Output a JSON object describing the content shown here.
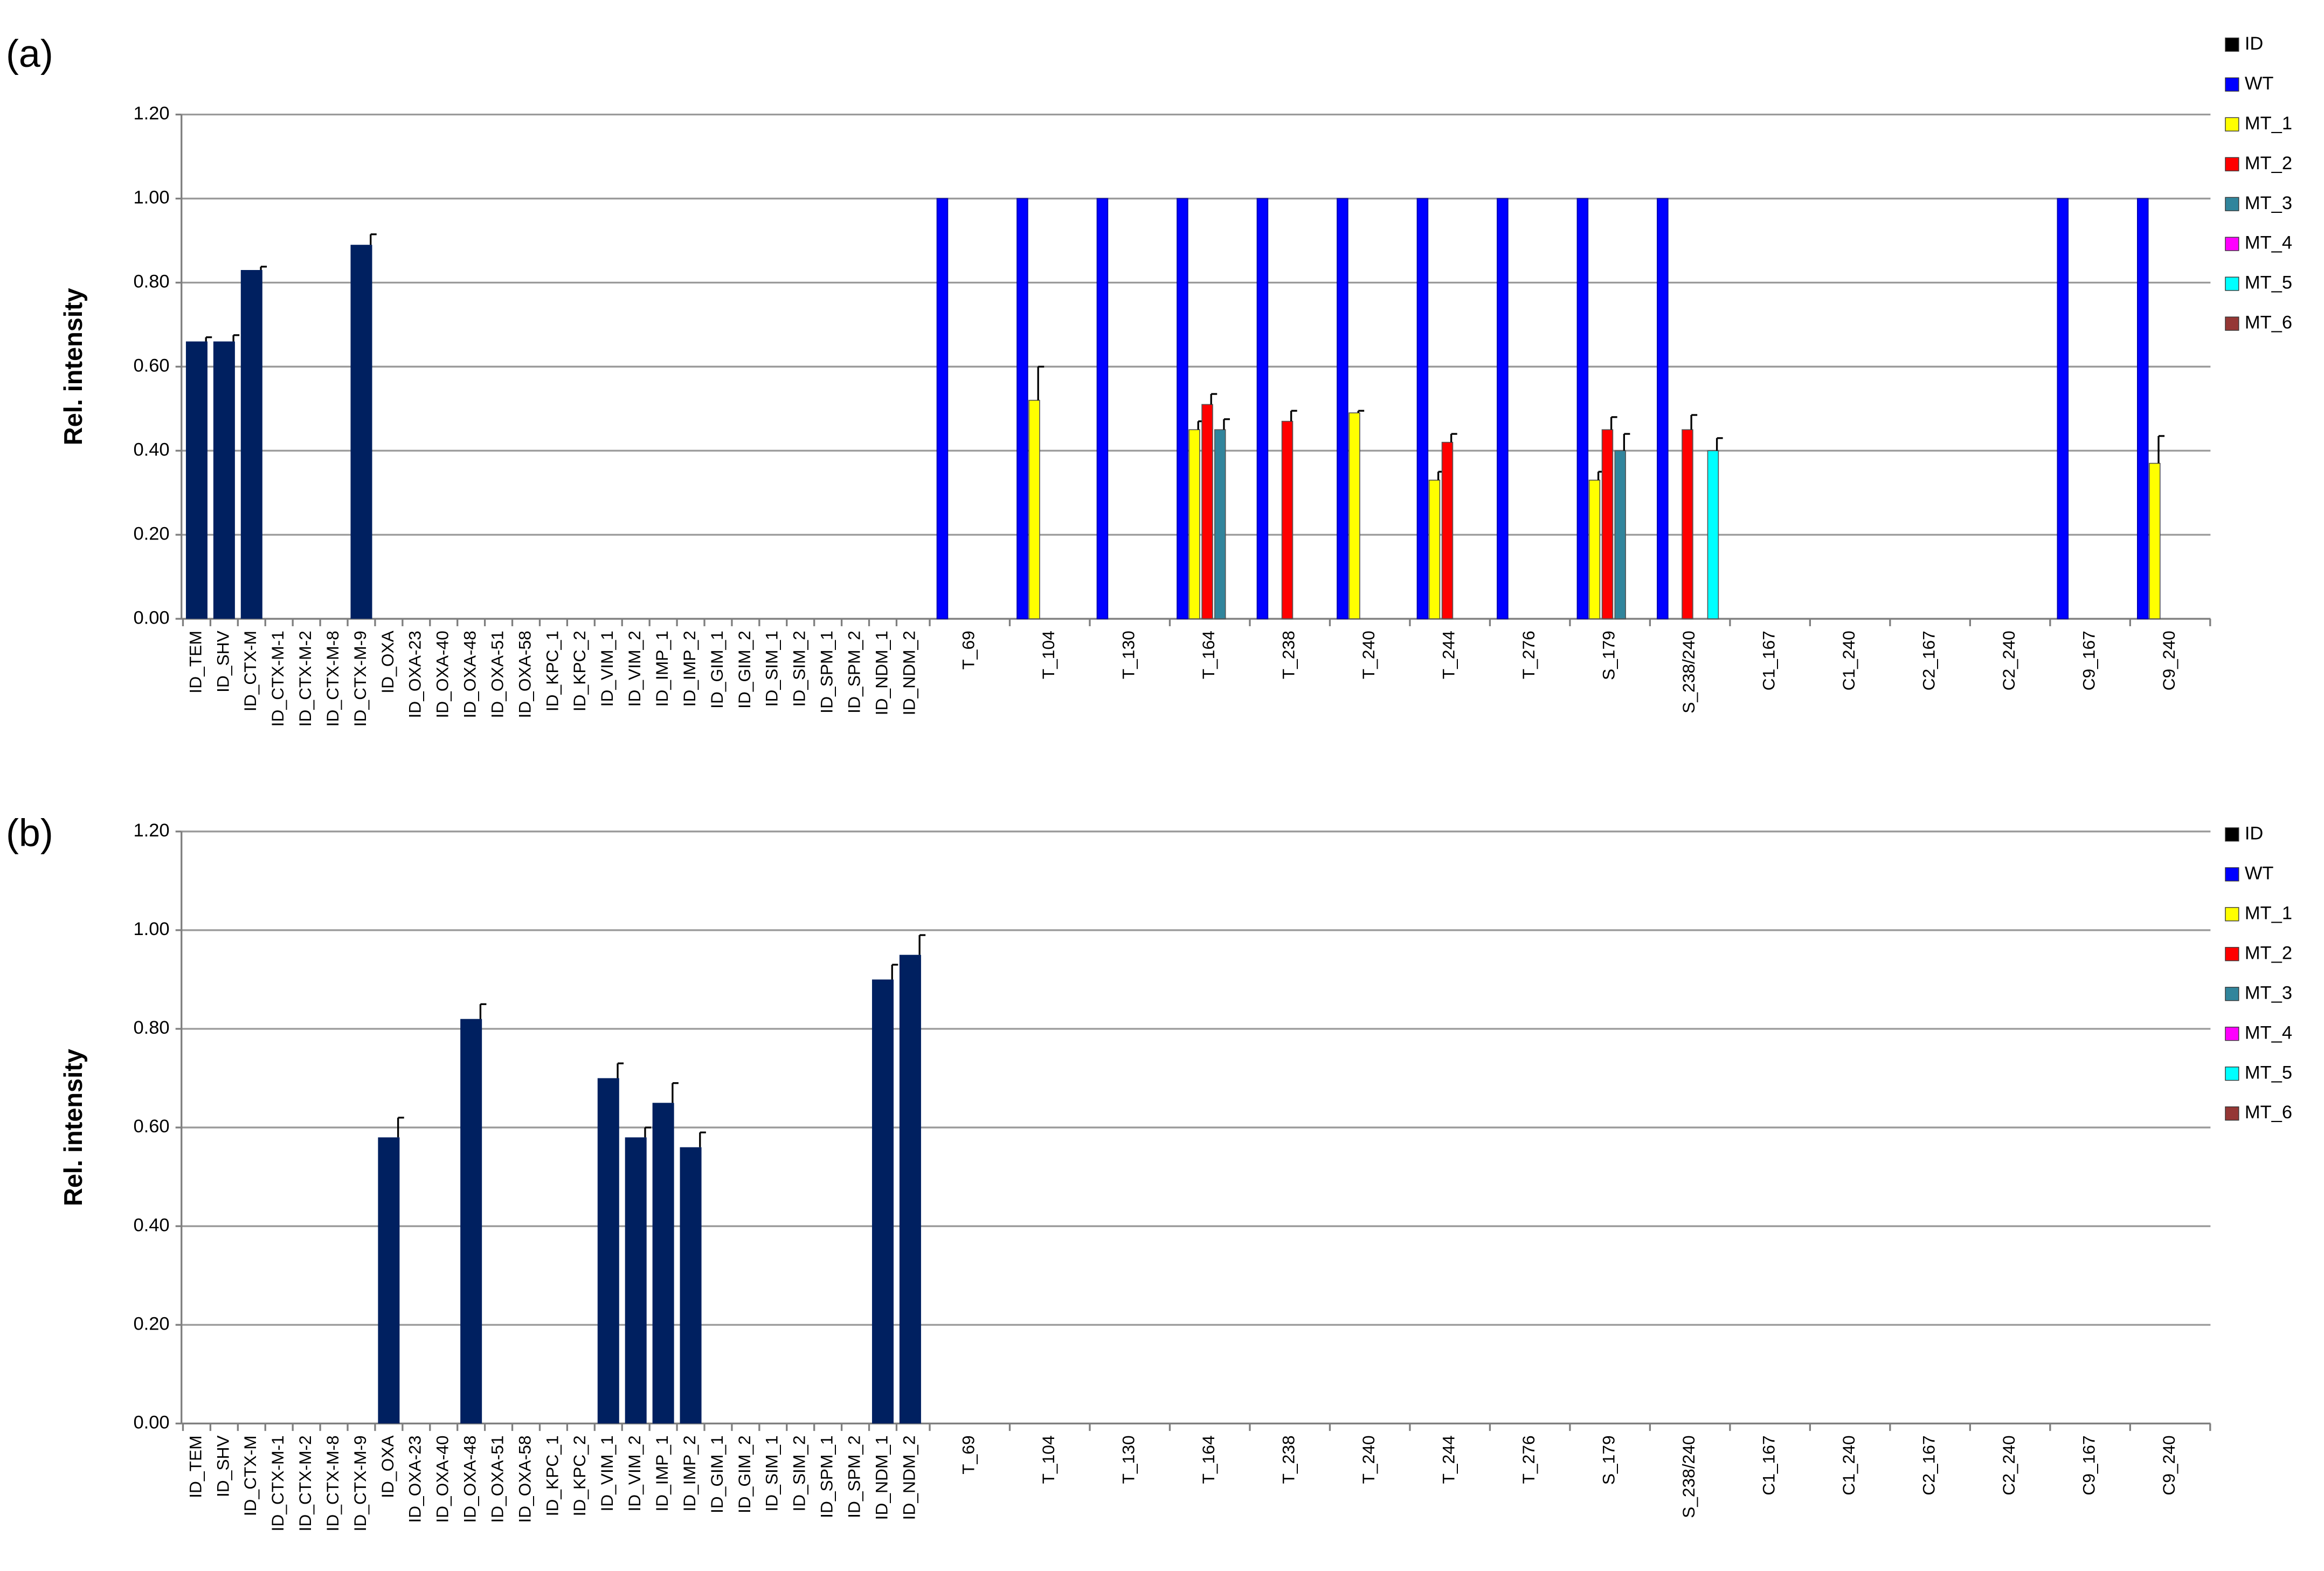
{
  "panel_labels": [
    "(a)",
    "(b)"
  ],
  "legend_colors": {
    "ID": "#000000",
    "WT": "#0000ff",
    "MT_1": "#ffff00",
    "MT_2": "#ff0000",
    "MT_3": "#31859c",
    "MT_4": "#ff00ff",
    "MT_5": "#00ffff",
    "MT_6": "#953735"
  },
  "id_bar_color": "#002060",
  "chart_data": [
    {
      "type": "bar",
      "panel": "(a)",
      "ylabel": "Rel. intensity",
      "ylim": [
        0,
        1.2
      ],
      "yticks": [
        "0.00",
        "0.20",
        "0.40",
        "0.60",
        "0.80",
        "1.00",
        "1.20"
      ],
      "grid": true,
      "legend": {
        "position": "right",
        "entries": [
          "ID",
          "WT",
          "MT_1",
          "MT_2",
          "MT_3",
          "MT_4",
          "MT_5",
          "MT_6"
        ]
      },
      "id_categories": [
        "ID_TEM",
        "ID_SHV",
        "ID_CTX-M",
        "ID_CTX-M-1",
        "ID_CTX-M-2",
        "ID_CTX-M-8",
        "ID_CTX-M-9",
        "ID_OXA",
        "ID_OXA-23",
        "ID_OXA-40",
        "ID_OXA-48",
        "ID_OXA-51",
        "ID_OXA-58",
        "ID_KPC_1",
        "ID_KPC_2",
        "ID_VIM_1",
        "ID_VIM_2",
        "ID_IMP_1",
        "ID_IMP_2",
        "ID_GIM_1",
        "ID_GIM_2",
        "ID_SIM_1",
        "ID_SIM_2",
        "ID_SPM_1",
        "ID_SPM_2",
        "ID_NDM_1",
        "ID_NDM_2"
      ],
      "id_values": [
        0.66,
        0.66,
        0.83,
        0,
        0,
        0,
        0.89,
        0,
        0,
        0,
        0,
        0,
        0,
        0,
        0,
        0,
        0,
        0,
        0,
        0,
        0,
        0,
        0,
        0,
        0,
        0,
        0
      ],
      "id_errors": [
        0.01,
        0.015,
        0.008,
        0,
        0,
        0,
        0.025,
        0,
        0,
        0,
        0,
        0,
        0,
        0,
        0,
        0,
        0,
        0,
        0,
        0,
        0,
        0,
        0,
        0,
        0,
        0,
        0
      ],
      "snp_categories": [
        "T_69",
        "T_104",
        "T_130",
        "T_164",
        "T_238",
        "T_240",
        "T_244",
        "T_276",
        "S_179",
        "S_238/240",
        "C1_167",
        "C1_240",
        "C2_167",
        "C2_240",
        "C9_167",
        "C9_240"
      ],
      "snp_series": [
        {
          "name": "WT",
          "values": [
            1,
            1,
            1,
            1,
            1,
            1,
            1,
            1,
            1,
            1,
            0,
            0,
            0,
            0,
            1,
            1
          ],
          "errors": [
            0,
            0,
            0,
            0,
            0,
            0,
            0,
            0,
            0,
            0,
            0,
            0,
            0,
            0,
            0,
            0
          ]
        },
        {
          "name": "MT_1",
          "values": [
            0,
            0.52,
            0,
            0.45,
            0,
            0.49,
            0.33,
            0,
            0.33,
            0,
            0,
            0,
            0,
            0,
            0,
            0.37
          ],
          "errors": [
            0,
            0.08,
            0,
            0.02,
            0,
            0.005,
            0.02,
            0,
            0.02,
            0,
            0,
            0,
            0,
            0,
            0,
            0.065
          ]
        },
        {
          "name": "MT_2",
          "values": [
            0,
            0,
            0,
            0.51,
            0.47,
            0,
            0.42,
            0,
            0.45,
            0.45,
            0,
            0,
            0,
            0,
            0,
            0
          ],
          "errors": [
            0,
            0,
            0,
            0.025,
            0.025,
            0,
            0.02,
            0,
            0.03,
            0.035,
            0,
            0,
            0,
            0,
            0,
            0
          ]
        },
        {
          "name": "MT_3",
          "values": [
            0,
            0,
            0,
            0.45,
            0,
            0,
            0,
            0,
            0.4,
            0,
            0,
            0,
            0,
            0,
            0,
            0
          ],
          "errors": [
            0,
            0,
            0,
            0.025,
            0,
            0,
            0,
            0,
            0.04,
            0,
            0,
            0,
            0,
            0,
            0,
            0
          ]
        },
        {
          "name": "MT_4",
          "values": [
            0,
            0,
            0,
            0,
            0,
            0,
            0,
            0,
            0,
            0,
            0,
            0,
            0,
            0,
            0,
            0
          ],
          "errors": [
            0,
            0,
            0,
            0,
            0,
            0,
            0,
            0,
            0,
            0,
            0,
            0,
            0,
            0,
            0,
            0
          ]
        },
        {
          "name": "MT_5",
          "values": [
            0,
            0,
            0,
            0,
            0,
            0,
            0,
            0,
            0,
            0.4,
            0,
            0,
            0,
            0,
            0,
            0
          ],
          "errors": [
            0,
            0,
            0,
            0,
            0,
            0,
            0,
            0,
            0,
            0.03,
            0,
            0,
            0,
            0,
            0,
            0
          ]
        },
        {
          "name": "MT_6",
          "values": [
            0,
            0,
            0,
            0,
            0,
            0,
            0,
            0,
            0,
            0,
            0,
            0,
            0,
            0,
            0,
            0
          ],
          "errors": [
            0,
            0,
            0,
            0,
            0,
            0,
            0,
            0,
            0,
            0,
            0,
            0,
            0,
            0,
            0,
            0
          ]
        }
      ]
    },
    {
      "type": "bar",
      "panel": "(b)",
      "ylabel": "Rel. intensity",
      "ylim": [
        0,
        1.2
      ],
      "yticks": [
        "0.00",
        "0.20",
        "0.40",
        "0.60",
        "0.80",
        "1.00",
        "1.20"
      ],
      "grid": true,
      "legend": {
        "position": "right",
        "entries": [
          "ID",
          "WT",
          "MT_1",
          "MT_2",
          "MT_3",
          "MT_4",
          "MT_5",
          "MT_6"
        ]
      },
      "id_categories": [
        "ID_TEM",
        "ID_SHV",
        "ID_CTX-M",
        "ID_CTX-M-1",
        "ID_CTX-M-2",
        "ID_CTX-M-8",
        "ID_CTX-M-9",
        "ID_OXA",
        "ID_OXA-23",
        "ID_OXA-40",
        "ID_OXA-48",
        "ID_OXA-51",
        "ID_OXA-58",
        "ID_KPC_1",
        "ID_KPC_2",
        "ID_VIM_1",
        "ID_VIM_2",
        "ID_IMP_1",
        "ID_IMP_2",
        "ID_GIM_1",
        "ID_GIM_2",
        "ID_SIM_1",
        "ID_SIM_2",
        "ID_SPM_1",
        "ID_SPM_2",
        "ID_NDM_1",
        "ID_NDM_2"
      ],
      "id_values": [
        0,
        0,
        0,
        0,
        0,
        0,
        0,
        0.58,
        0,
        0,
        0.82,
        0,
        0,
        0,
        0,
        0.7,
        0.58,
        0.65,
        0.56,
        0,
        0,
        0,
        0,
        0,
        0,
        0.9,
        0.95
      ],
      "id_errors": [
        0,
        0,
        0,
        0,
        0,
        0,
        0,
        0.04,
        0,
        0,
        0.03,
        0,
        0,
        0,
        0,
        0.03,
        0.02,
        0.04,
        0.03,
        0,
        0,
        0,
        0,
        0,
        0,
        0.03,
        0.04
      ],
      "snp_categories": [
        "T_69",
        "T_104",
        "T_130",
        "T_164",
        "T_238",
        "T_240",
        "T_244",
        "T_276",
        "S_179",
        "S_238/240",
        "C1_167",
        "C1_240",
        "C2_167",
        "C2_240",
        "C9_167",
        "C9_240"
      ],
      "snp_series": [
        {
          "name": "WT",
          "values": [
            0,
            0,
            0,
            0,
            0,
            0,
            0,
            0,
            0,
            0,
            0,
            0,
            0,
            0,
            0,
            0
          ],
          "errors": [
            0,
            0,
            0,
            0,
            0,
            0,
            0,
            0,
            0,
            0,
            0,
            0,
            0,
            0,
            0,
            0
          ]
        },
        {
          "name": "MT_1",
          "values": [
            0,
            0,
            0,
            0,
            0,
            0,
            0,
            0,
            0,
            0,
            0,
            0,
            0,
            0,
            0,
            0
          ],
          "errors": [
            0,
            0,
            0,
            0,
            0,
            0,
            0,
            0,
            0,
            0,
            0,
            0,
            0,
            0,
            0,
            0
          ]
        },
        {
          "name": "MT_2",
          "values": [
            0,
            0,
            0,
            0,
            0,
            0,
            0,
            0,
            0,
            0,
            0,
            0,
            0,
            0,
            0,
            0
          ],
          "errors": [
            0,
            0,
            0,
            0,
            0,
            0,
            0,
            0,
            0,
            0,
            0,
            0,
            0,
            0,
            0,
            0
          ]
        },
        {
          "name": "MT_3",
          "values": [
            0,
            0,
            0,
            0,
            0,
            0,
            0,
            0,
            0,
            0,
            0,
            0,
            0,
            0,
            0,
            0
          ],
          "errors": [
            0,
            0,
            0,
            0,
            0,
            0,
            0,
            0,
            0,
            0,
            0,
            0,
            0,
            0,
            0,
            0
          ]
        },
        {
          "name": "MT_4",
          "values": [
            0,
            0,
            0,
            0,
            0,
            0,
            0,
            0,
            0,
            0,
            0,
            0,
            0,
            0,
            0,
            0
          ],
          "errors": [
            0,
            0,
            0,
            0,
            0,
            0,
            0,
            0,
            0,
            0,
            0,
            0,
            0,
            0,
            0,
            0
          ]
        },
        {
          "name": "MT_5",
          "values": [
            0,
            0,
            0,
            0,
            0,
            0,
            0,
            0,
            0,
            0,
            0,
            0,
            0,
            0,
            0,
            0
          ],
          "errors": [
            0,
            0,
            0,
            0,
            0,
            0,
            0,
            0,
            0,
            0,
            0,
            0,
            0,
            0,
            0,
            0
          ]
        },
        {
          "name": "MT_6",
          "values": [
            0,
            0,
            0,
            0,
            0,
            0,
            0,
            0,
            0,
            0,
            0,
            0,
            0,
            0,
            0,
            0
          ],
          "errors": [
            0,
            0,
            0,
            0,
            0,
            0,
            0,
            0,
            0,
            0,
            0,
            0,
            0,
            0,
            0,
            0
          ]
        }
      ]
    }
  ]
}
